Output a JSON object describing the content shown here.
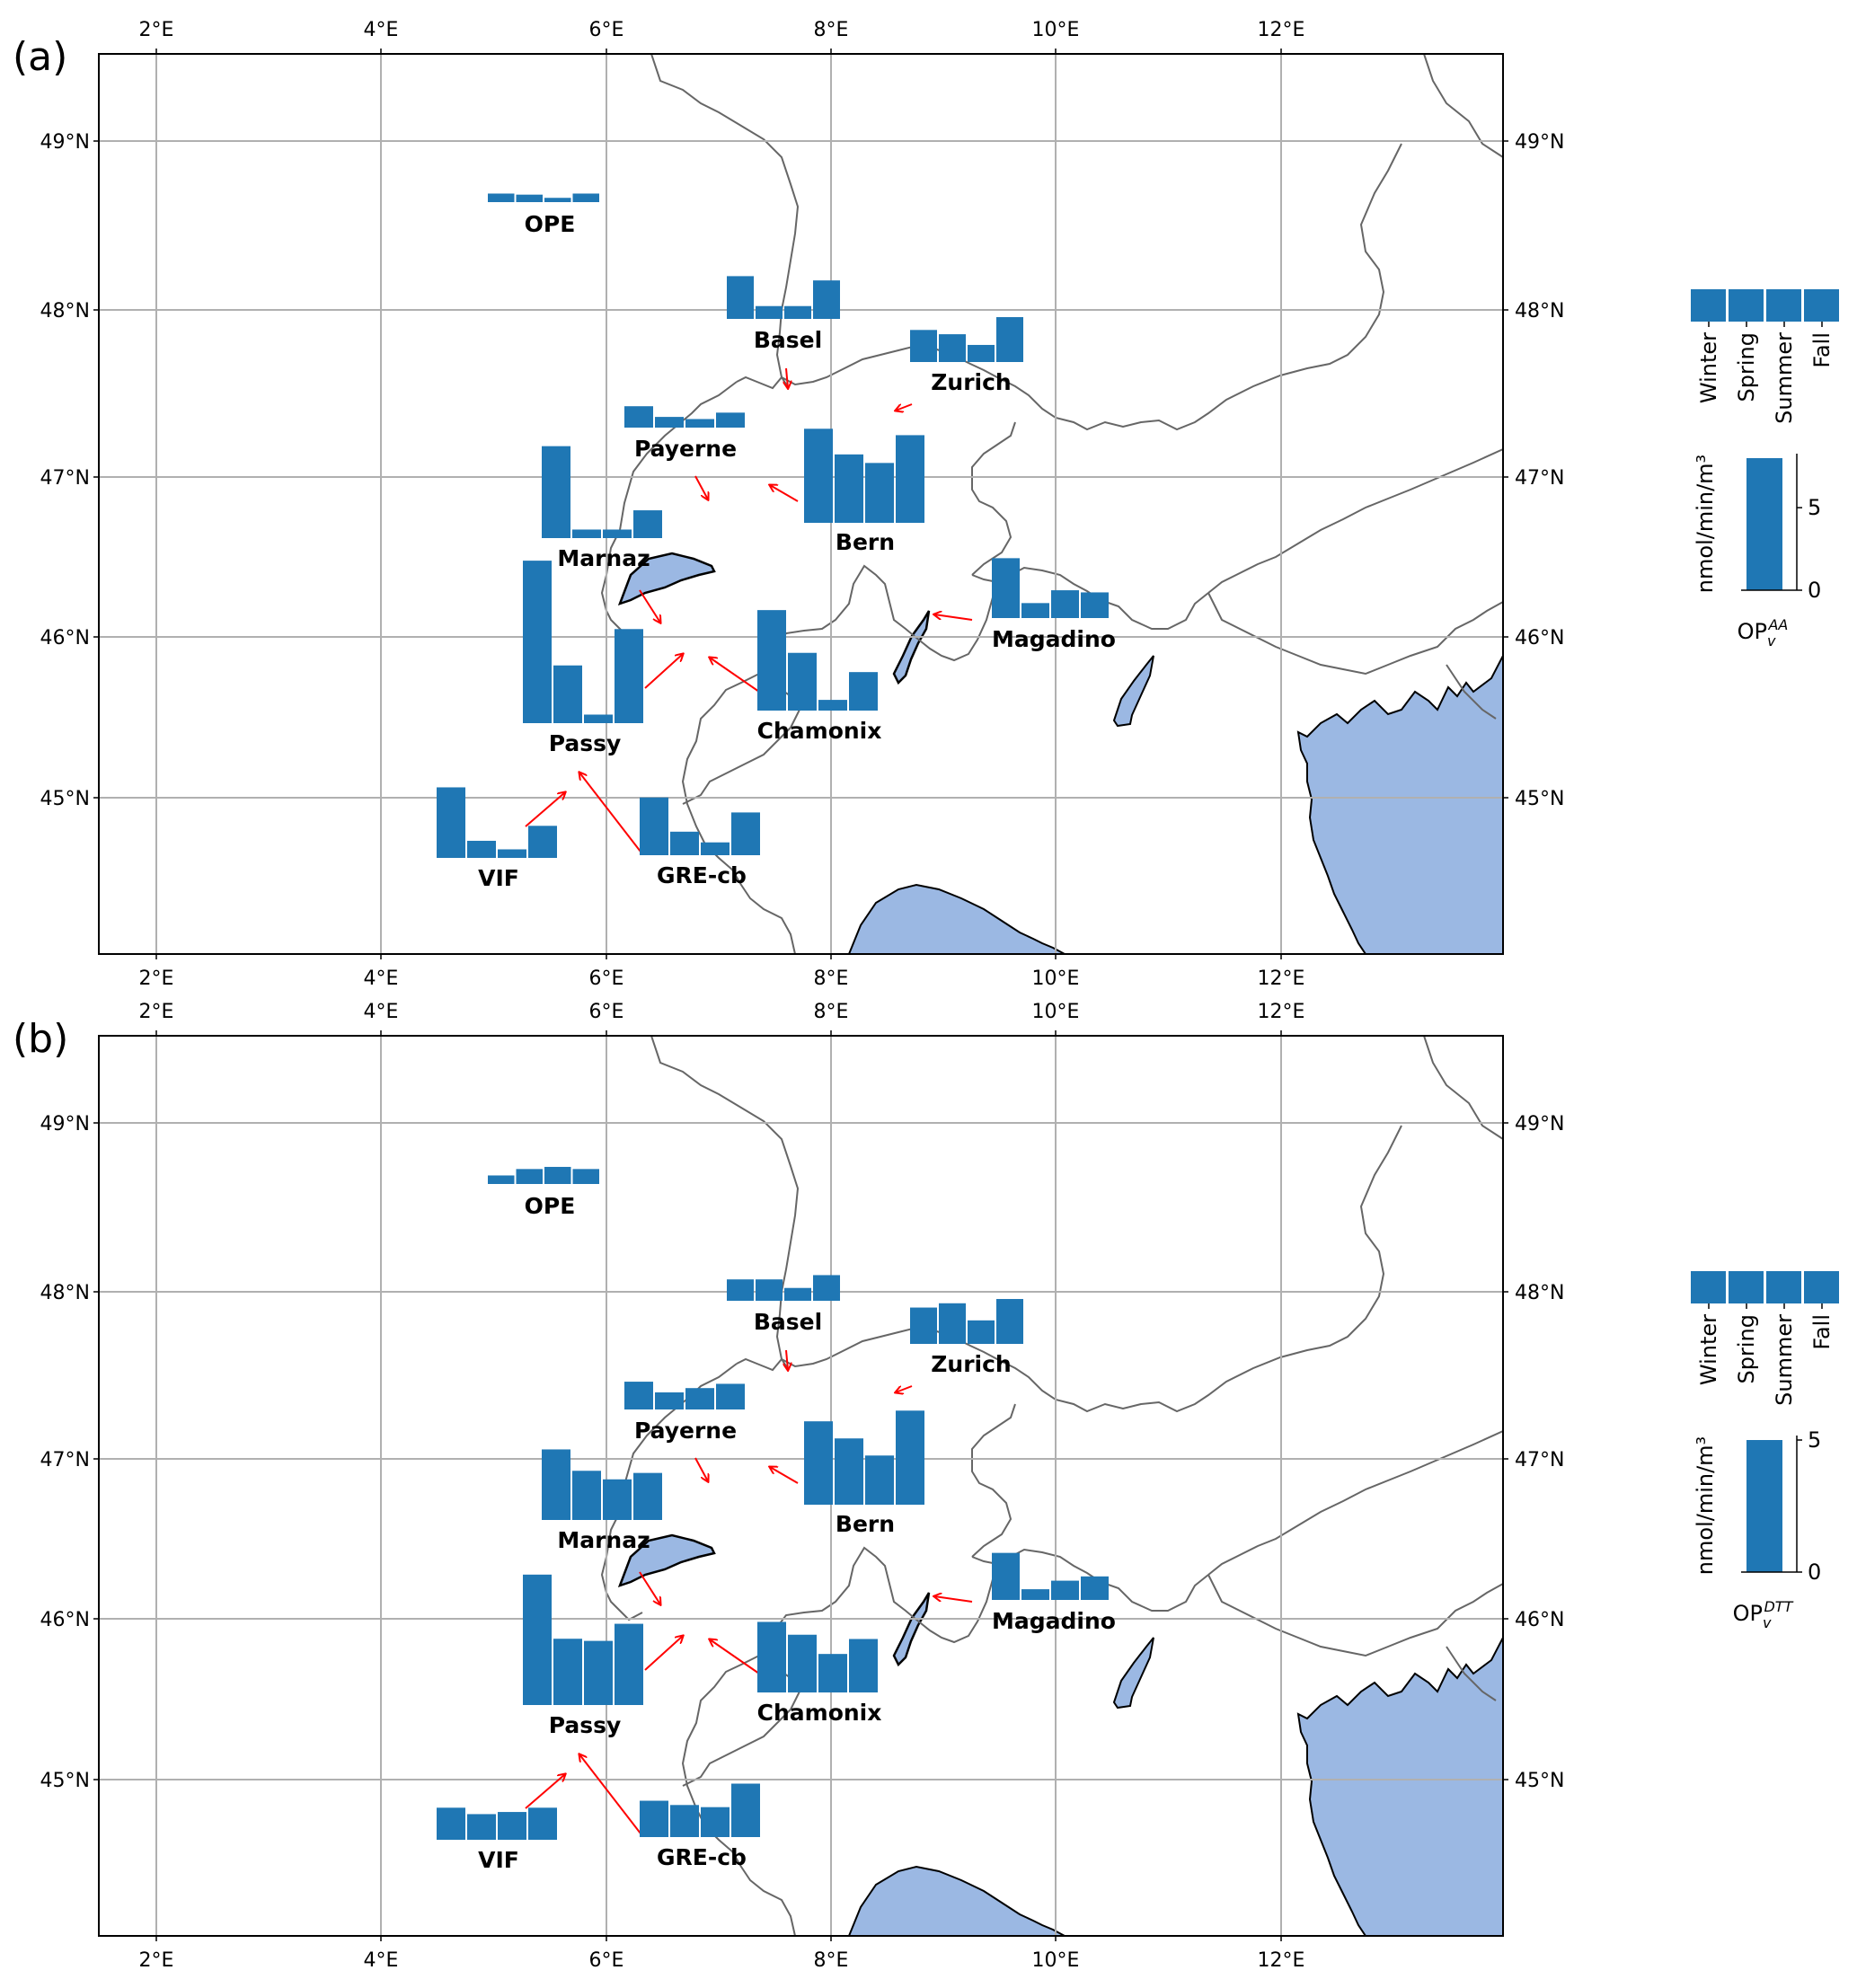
{
  "colors": {
    "bar": "#1f77b4",
    "sea": "#9bb8e3",
    "border": "#666666",
    "arrow": "#ff0000",
    "grid": "#b0b0b0"
  },
  "lon_ticks": [
    "2°E",
    "4°E",
    "6°E",
    "8°E",
    "10°E",
    "12°E"
  ],
  "lat_ticks": [
    "45°N",
    "46°N",
    "47°N",
    "48°N",
    "49°N"
  ],
  "seasons": [
    "Winter",
    "Spring",
    "Summer",
    "Fall"
  ],
  "panels": [
    {
      "label": "(a)",
      "legend": {
        "unit": "nmol/min/m³",
        "scale_ticks": [
          "0",
          "5"
        ],
        "scale_max": 8,
        "metric_main": "OP",
        "metric_sub": "v",
        "metric_sup": "AA"
      },
      "sites": [
        {
          "name": "OPE",
          "values": [
            0.4,
            0.35,
            0.2,
            0.4
          ]
        },
        {
          "name": "Basel",
          "values": [
            2.0,
            0.6,
            0.6,
            1.8
          ]
        },
        {
          "name": "Zurich",
          "values": [
            1.5,
            1.3,
            0.8,
            2.1
          ]
        },
        {
          "name": "Payerne",
          "values": [
            1.0,
            0.5,
            0.4,
            0.7
          ]
        },
        {
          "name": "Bern",
          "values": [
            4.4,
            3.2,
            2.8,
            4.1
          ]
        },
        {
          "name": "Marnaz",
          "values": [
            4.3,
            0.4,
            0.4,
            1.3
          ]
        },
        {
          "name": "Magadino",
          "values": [
            2.8,
            0.7,
            1.3,
            1.2
          ]
        },
        {
          "name": "Passy",
          "values": [
            7.6,
            2.7,
            0.4,
            4.4
          ]
        },
        {
          "name": "Chamonix",
          "values": [
            4.7,
            2.7,
            0.5,
            1.8
          ]
        },
        {
          "name": "VIF",
          "values": [
            3.3,
            0.8,
            0.4,
            1.5
          ]
        },
        {
          "name": "GRE-cb",
          "values": [
            2.7,
            1.1,
            0.6,
            2.0
          ]
        }
      ]
    },
    {
      "label": "(b)",
      "legend": {
        "unit": "nmol/min/m³",
        "scale_ticks": [
          "0",
          "5"
        ],
        "scale_max": 5,
        "metric_main": "OP",
        "metric_sub": "v",
        "metric_sup": "DTT"
      },
      "sites": [
        {
          "name": "OPE",
          "values": [
            0.4,
            0.7,
            0.8,
            0.7
          ]
        },
        {
          "name": "Basel",
          "values": [
            1.0,
            1.0,
            0.6,
            1.2
          ]
        },
        {
          "name": "Zurich",
          "values": [
            1.7,
            1.9,
            1.1,
            2.1
          ]
        },
        {
          "name": "Payerne",
          "values": [
            1.3,
            0.8,
            1.0,
            1.2
          ]
        },
        {
          "name": "Bern",
          "values": [
            3.9,
            3.1,
            2.3,
            4.4
          ]
        },
        {
          "name": "Marnaz",
          "values": [
            3.3,
            2.3,
            1.9,
            2.2
          ]
        },
        {
          "name": "Magadino",
          "values": [
            2.2,
            0.5,
            0.9,
            1.1
          ]
        },
        {
          "name": "Passy",
          "values": [
            6.1,
            3.1,
            3.0,
            3.8
          ]
        },
        {
          "name": "Chamonix",
          "values": [
            3.3,
            2.7,
            1.8,
            2.5
          ]
        },
        {
          "name": "VIF",
          "values": [
            1.5,
            1.2,
            1.3,
            1.5
          ]
        },
        {
          "name": "GRE-cb",
          "values": [
            1.7,
            1.5,
            1.4,
            2.5
          ]
        }
      ]
    }
  ]
}
